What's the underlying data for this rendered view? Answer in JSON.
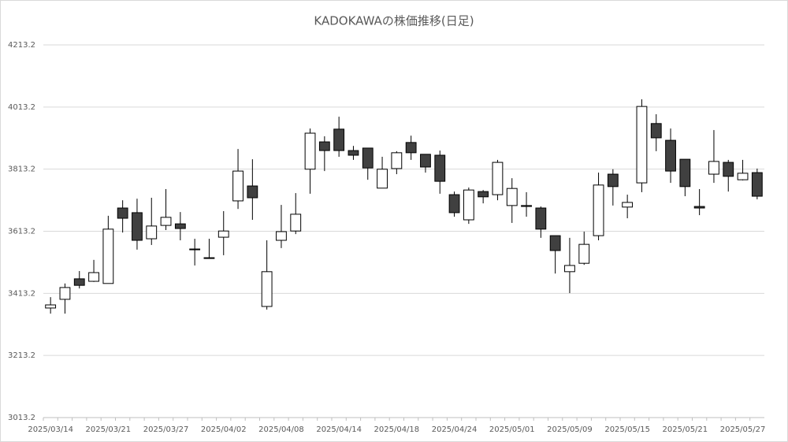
{
  "chart_data": {
    "type": "candlestick",
    "title": "KADOKAWAの株価推移(日足)",
    "categories": [
      "2025/03/14",
      null,
      null,
      null,
      "2025/03/21",
      null,
      null,
      null,
      "2025/03/27",
      null,
      null,
      null,
      "2025/04/02",
      null,
      null,
      null,
      "2025/04/08",
      null,
      null,
      null,
      "2025/04/14",
      null,
      null,
      null,
      "2025/04/18",
      null,
      null,
      null,
      "2025/04/24",
      null,
      null,
      null,
      "2025/05/01",
      null,
      null,
      null,
      "2025/05/09",
      null,
      null,
      null,
      "2025/05/15",
      null,
      null,
      null,
      "2025/05/21",
      null,
      null,
      null,
      "2025/05/27",
      null
    ],
    "open": [
      3366,
      3394,
      3460,
      3452,
      3445,
      3688,
      3673,
      3589,
      3632,
      3637,
      3556,
      3528,
      3594,
      3711,
      3759,
      3371,
      3584,
      3614,
      3813,
      3901,
      3942,
      3873,
      3881,
      3752,
      3815,
      3899,
      3861,
      3858,
      3731,
      3650,
      3741,
      3731,
      3696,
      3696,
      3688,
      3599,
      3483,
      3510,
      3599,
      3797,
      3691,
      3769,
      3960,
      3906,
      3845,
      3693,
      3797,
      3835,
      3779,
      3802
    ],
    "high": [
      3401,
      3445,
      3485,
      3521,
      3663,
      3713,
      3718,
      3721,
      3749,
      3675,
      3589,
      3589,
      3678,
      3878,
      3845,
      3584,
      3698,
      3736,
      3944,
      3919,
      3982,
      3888,
      3881,
      3853,
      3871,
      3921,
      3861,
      3873,
      3741,
      3754,
      3746,
      3843,
      3784,
      3739,
      3693,
      3599,
      3592,
      3612,
      3802,
      3813,
      3731,
      4038,
      3990,
      3944,
      3845,
      3749,
      3939,
      3843,
      3843,
      3815
    ],
    "low": [
      3348,
      3348,
      3429,
      3450,
      3445,
      3609,
      3554,
      3569,
      3617,
      3584,
      3503,
      3526,
      3536,
      3685,
      3650,
      3361,
      3559,
      3604,
      3734,
      3807,
      3853,
      3843,
      3779,
      3752,
      3797,
      3843,
      3802,
      3734,
      3660,
      3637,
      3703,
      3713,
      3640,
      3660,
      3592,
      3477,
      3414,
      3505,
      3584,
      3696,
      3655,
      3739,
      3871,
      3769,
      3726,
      3665,
      3769,
      3741,
      3777,
      3716
    ],
    "close": [
      3376,
      3432,
      3439,
      3480,
      3620,
      3655,
      3584,
      3630,
      3658,
      3622,
      3554,
      3528,
      3614,
      3807,
      3721,
      3483,
      3612,
      3668,
      3929,
      3873,
      3873,
      3858,
      3817,
      3813,
      3866,
      3866,
      3820,
      3774,
      3673,
      3746,
      3724,
      3835,
      3751,
      3693,
      3620,
      3551,
      3503,
      3571,
      3762,
      3757,
      3706,
      4015,
      3914,
      3807,
      3757,
      3688,
      3838,
      3790,
      3800,
      3726
    ],
    "up_color": "#ffffff",
    "down_color": "#404040",
    "ylim": [
      3013.2,
      4213.2
    ],
    "yticks": [
      3013.2,
      3213.2,
      3413.2,
      3613.2,
      3813.2,
      4013.2,
      4213.2
    ],
    "grid": true
  }
}
